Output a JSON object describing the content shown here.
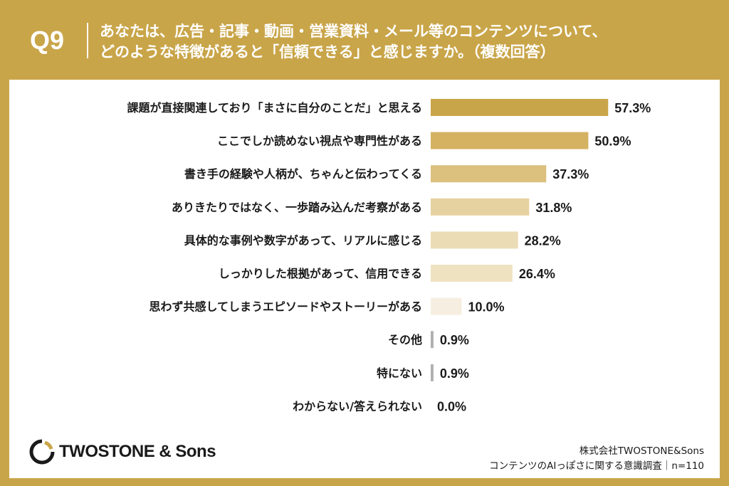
{
  "header": {
    "qnum": "Q9",
    "question_line1": "あなたは、広告・記事・動画・営業資料・メール等のコンテンツについて、",
    "question_line2": "どのような特徴があると「信頼できる」と感じますか。（複数回答）"
  },
  "colors": {
    "frame": "#c9a549",
    "bar_palette": [
      "#c9a549",
      "#d4b262",
      "#dbc07e",
      "#e6d1a0",
      "#ecdcb5",
      "#efe2c1",
      "#f6efe1",
      "#b0b0b0",
      "#b0b0b0",
      "#b0b0b0"
    ]
  },
  "chart_data": {
    "type": "bar",
    "orientation": "horizontal",
    "unit": "%",
    "categories": [
      "課題が直接関連しており「まさに自分のことだ」と思える",
      "ここでしか読めない視点や専門性がある",
      "書き手の経験や人柄が、ちゃんと伝わってくる",
      "ありきたりではなく、一歩踏み込んだ考察がある",
      "具体的な事例や数字があって、リアルに感じる",
      "しっかりした根拠があって、信用できる",
      "思わず共感してしまうエピソードやストーリーがある",
      "その他",
      "特にない",
      "わからない/答えられない"
    ],
    "values": [
      57.3,
      50.9,
      37.3,
      31.8,
      28.2,
      26.4,
      10.0,
      0.9,
      0.9,
      0.0
    ],
    "value_labels": [
      "57.3%",
      "50.9%",
      "37.3%",
      "31.8%",
      "28.2%",
      "26.4%",
      "10.0%",
      "0.9%",
      "0.9%",
      "0.0%"
    ]
  },
  "footer": {
    "logo_text": "TWOSTONE & Sons",
    "company": "株式会社TWOSTONE&Sons",
    "survey": "コンテンツのAIっぽさに関する意識調査｜n=110"
  }
}
